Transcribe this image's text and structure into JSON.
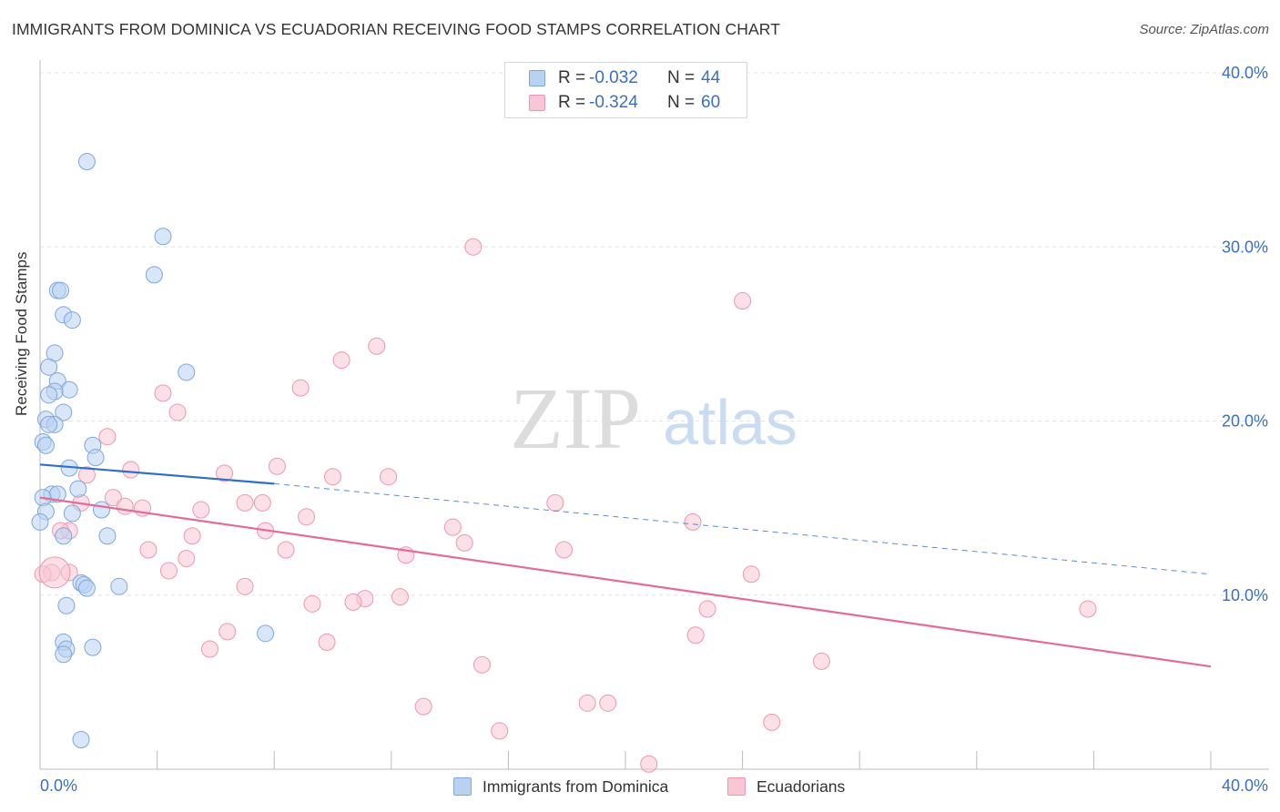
{
  "header": {
    "title": "IMMIGRANTS FROM DOMINICA VS ECUADORIAN RECEIVING FOOD STAMPS CORRELATION CHART",
    "source": "Source: ZipAtlas.com"
  },
  "watermark": {
    "zip": "ZIP",
    "atlas": "atlas"
  },
  "stats": [
    {
      "r_label": "R =",
      "r_value": "-0.032",
      "n_label": "N =",
      "n_value": "44"
    },
    {
      "r_label": "R =",
      "r_value": "-0.324",
      "n_label": "N =",
      "n_value": "60"
    }
  ],
  "legend": [
    {
      "label": "Immigrants from Dominica"
    },
    {
      "label": "Ecuadorians"
    }
  ],
  "colors": {
    "blue_fill": "#b9d2f2",
    "blue_stroke": "#7da7dc",
    "blue_line": "#2f6fca",
    "pink_fill": "#f8c6d5",
    "pink_stroke": "#ec97b1",
    "pink_line": "#e46b96",
    "tick_text": "#3b6fc2",
    "grid": "#e3e3e3"
  },
  "chart_data": {
    "type": "scatter",
    "title": "IMMIGRANTS FROM DOMINICA VS ECUADORIAN RECEIVING FOOD STAMPS CORRELATION CHART",
    "xlabel": "",
    "ylabel": "Receiving Food Stamps",
    "xlim": [
      0,
      40
    ],
    "ylim": [
      0,
      40
    ],
    "x_tick_labels": [
      "0.0%",
      "40.0%"
    ],
    "y_ticks": [
      10,
      20,
      30,
      40
    ],
    "y_tick_labels": [
      "10.0%",
      "20.0%",
      "30.0%",
      "40.0%"
    ],
    "grid": true,
    "legend_position": "bottom-center",
    "series": [
      {
        "name": "Immigrants from Dominica",
        "r": -0.032,
        "n": 44,
        "trend": {
          "x": [
            0,
            8
          ],
          "y": [
            17.5,
            16.4
          ],
          "dashed_to": [
            40,
            11.2
          ]
        },
        "points": [
          [
            1.6,
            34.9
          ],
          [
            4.2,
            30.6
          ],
          [
            3.9,
            28.4
          ],
          [
            0.6,
            27.5
          ],
          [
            0.7,
            27.5
          ],
          [
            0.8,
            26.1
          ],
          [
            1.1,
            25.8
          ],
          [
            0.5,
            23.9
          ],
          [
            5.0,
            22.8
          ],
          [
            0.3,
            23.1
          ],
          [
            0.6,
            22.3
          ],
          [
            1.0,
            21.8
          ],
          [
            0.5,
            21.7
          ],
          [
            0.3,
            21.5
          ],
          [
            0.8,
            20.5
          ],
          [
            0.2,
            20.1
          ],
          [
            0.5,
            19.8
          ],
          [
            0.3,
            19.8
          ],
          [
            0.1,
            18.8
          ],
          [
            0.2,
            18.6
          ],
          [
            1.8,
            18.6
          ],
          [
            1.9,
            17.9
          ],
          [
            1.0,
            17.3
          ],
          [
            1.3,
            16.1
          ],
          [
            0.4,
            15.8
          ],
          [
            0.6,
            15.8
          ],
          [
            0.1,
            15.6
          ],
          [
            0.2,
            14.8
          ],
          [
            1.1,
            14.7
          ],
          [
            2.1,
            14.9
          ],
          [
            0.0,
            14.2
          ],
          [
            0.8,
            13.4
          ],
          [
            2.3,
            13.4
          ],
          [
            1.4,
            10.7
          ],
          [
            1.5,
            10.6
          ],
          [
            1.6,
            10.4
          ],
          [
            2.7,
            10.5
          ],
          [
            0.9,
            9.4
          ],
          [
            7.7,
            7.8
          ],
          [
            0.8,
            7.3
          ],
          [
            1.8,
            7.0
          ],
          [
            0.9,
            6.9
          ],
          [
            0.8,
            6.6
          ],
          [
            1.4,
            1.7
          ]
        ]
      },
      {
        "name": "Ecuadorians",
        "r": -0.324,
        "n": 60,
        "trend": {
          "x": [
            0,
            40
          ],
          "y": [
            15.6,
            5.9
          ]
        },
        "points": [
          [
            14.8,
            30.0
          ],
          [
            24.0,
            26.9
          ],
          [
            11.5,
            24.3
          ],
          [
            10.3,
            23.5
          ],
          [
            8.9,
            21.9
          ],
          [
            4.2,
            21.6
          ],
          [
            4.7,
            20.5
          ],
          [
            2.3,
            19.1
          ],
          [
            8.1,
            17.4
          ],
          [
            3.1,
            17.2
          ],
          [
            6.3,
            17.0
          ],
          [
            1.6,
            16.9
          ],
          [
            10.0,
            16.8
          ],
          [
            11.9,
            16.8
          ],
          [
            2.5,
            15.6
          ],
          [
            1.4,
            15.3
          ],
          [
            2.9,
            15.1
          ],
          [
            3.5,
            15.0
          ],
          [
            7.0,
            15.3
          ],
          [
            7.6,
            15.3
          ],
          [
            17.6,
            15.3
          ],
          [
            5.5,
            14.9
          ],
          [
            9.1,
            14.5
          ],
          [
            22.3,
            14.2
          ],
          [
            1.0,
            13.7
          ],
          [
            14.1,
            13.9
          ],
          [
            7.7,
            13.7
          ],
          [
            0.7,
            13.7
          ],
          [
            5.2,
            13.4
          ],
          [
            14.5,
            13.0
          ],
          [
            3.7,
            12.6
          ],
          [
            8.4,
            12.6
          ],
          [
            17.9,
            12.6
          ],
          [
            12.5,
            12.3
          ],
          [
            5.0,
            12.1
          ],
          [
            4.4,
            11.4
          ],
          [
            24.3,
            11.2
          ],
          [
            0.4,
            11.3
          ],
          [
            0.1,
            11.2
          ],
          [
            7.0,
            10.5
          ],
          [
            11.1,
            9.8
          ],
          [
            12.3,
            9.9
          ],
          [
            9.3,
            9.5
          ],
          [
            10.7,
            9.6
          ],
          [
            22.8,
            9.2
          ],
          [
            35.8,
            9.2
          ],
          [
            6.4,
            7.9
          ],
          [
            22.4,
            7.7
          ],
          [
            9.8,
            7.3
          ],
          [
            5.8,
            6.9
          ],
          [
            26.7,
            6.2
          ],
          [
            15.1,
            6.0
          ],
          [
            13.1,
            3.6
          ],
          [
            18.7,
            3.8
          ],
          [
            19.4,
            3.8
          ],
          [
            25.0,
            2.7
          ],
          [
            15.7,
            2.2
          ],
          [
            20.8,
            0.3
          ],
          [
            1.0,
            11.3
          ],
          [
            0.5,
            11.3
          ]
        ]
      }
    ]
  }
}
